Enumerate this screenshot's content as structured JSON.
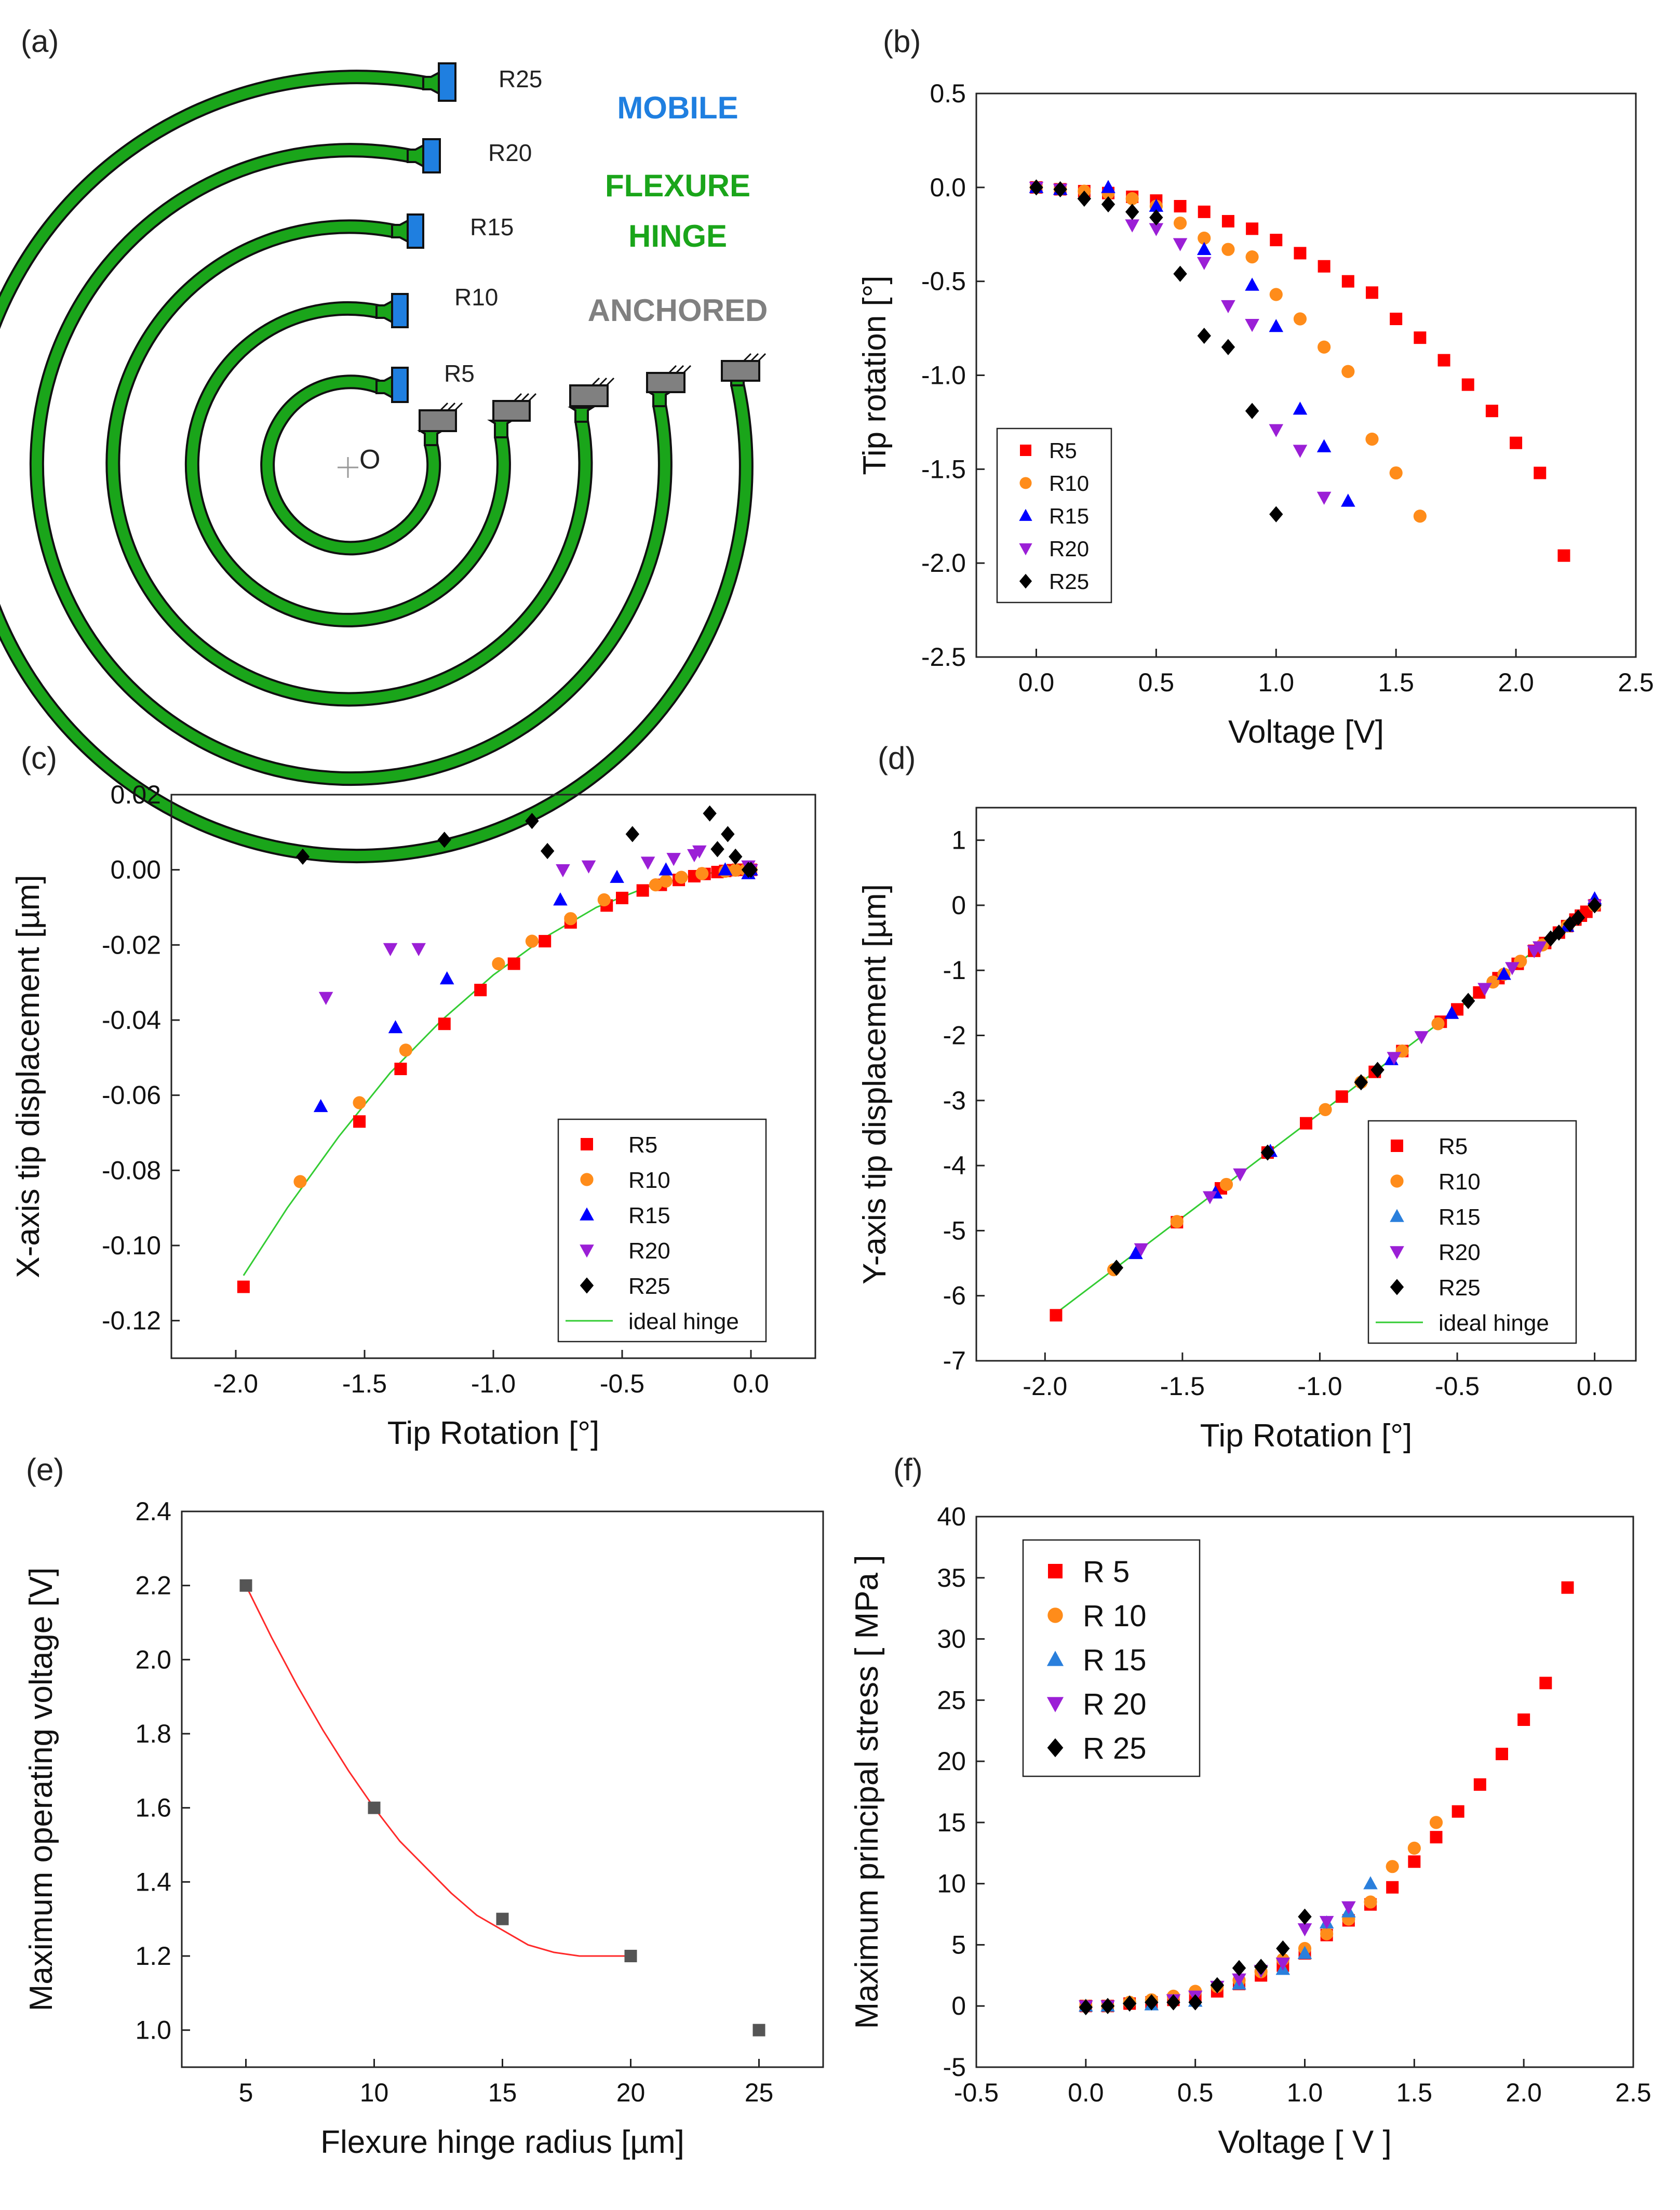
{
  "panel_labels": [
    "(a)",
    "(b)",
    "(c)",
    "(d)",
    "(e)",
    "(f)"
  ],
  "diagram_a": {
    "legend": {
      "mobile": "MOBILE",
      "flexure_line1": "FLEXURE",
      "flexure_line2": "HINGE",
      "anchored": "ANCHORED"
    },
    "hinges": [
      {
        "name": "R5",
        "radius": 5
      },
      {
        "name": "R10",
        "radius": 10
      },
      {
        "name": "R15",
        "radius": 15
      },
      {
        "name": "R20",
        "radius": 20
      },
      {
        "name": "R25",
        "radius": 25
      }
    ],
    "origin_label": "O",
    "colors": {
      "mobile": "#1f7fe0",
      "flexure": "#1aa51a",
      "anchored": "#808080"
    }
  },
  "series_styles": {
    "R5": {
      "color": "#ff0000",
      "marker": "square"
    },
    "R10": {
      "color": "#ff8c1a",
      "marker": "circle"
    },
    "R15": {
      "color": "#0000ff",
      "marker": "triangle-up"
    },
    "R15_alt": {
      "color": "#2a7fdc",
      "marker": "triangle-up"
    },
    "R20": {
      "color": "#9b1fd6",
      "marker": "triangle-down"
    },
    "R25": {
      "color": "#000000",
      "marker": "diamond"
    },
    "ideal": {
      "color": "#33cc33"
    },
    "fit": {
      "color": "#ff2a2a"
    },
    "gray": {
      "color": "#555555"
    }
  },
  "chart_data": [
    {
      "id": "b",
      "type": "scatter",
      "xlabel": "Voltage [V]",
      "ylabel": "Tip rotation [°]",
      "xlim": [
        -0.25,
        2.5
      ],
      "ylim": [
        -2.5,
        0.5
      ],
      "xticks": [
        0.0,
        0.5,
        1.0,
        1.5,
        2.0,
        2.5
      ],
      "xtick_labels": [
        "0.0",
        "0.5",
        "1.0",
        "1.5",
        "2.0",
        "2.5"
      ],
      "yticks": [
        0.5,
        0.0,
        -0.5,
        -1.0,
        -1.5,
        -2.0,
        -2.5
      ],
      "ytick_labels": [
        "0.5",
        "0.0",
        "-0.5",
        "-1.0",
        "-1.5",
        "-2.0",
        "-2.5"
      ],
      "legend_position": "bottom-left",
      "series": [
        {
          "name": "R5",
          "x": [
            0,
            0.1,
            0.2,
            0.3,
            0.4,
            0.5,
            0.6,
            0.7,
            0.8,
            0.9,
            1.0,
            1.1,
            1.2,
            1.3,
            1.4,
            1.5,
            1.6,
            1.7,
            1.8,
            1.9,
            2.0,
            2.1,
            2.2
          ],
          "y": [
            0,
            -0.01,
            -0.02,
            -0.03,
            -0.05,
            -0.07,
            -0.1,
            -0.13,
            -0.18,
            -0.22,
            -0.28,
            -0.35,
            -0.42,
            -0.5,
            -0.56,
            -0.7,
            -0.8,
            -0.92,
            -1.05,
            -1.19,
            -1.36,
            -1.52,
            -1.96
          ]
        },
        {
          "name": "R10",
          "x": [
            0,
            0.1,
            0.2,
            0.3,
            0.4,
            0.5,
            0.6,
            0.7,
            0.8,
            0.9,
            1.0,
            1.1,
            1.2,
            1.3,
            1.4,
            1.5,
            1.6
          ],
          "y": [
            0,
            -0.01,
            -0.02,
            -0.03,
            -0.06,
            -0.1,
            -0.19,
            -0.27,
            -0.33,
            -0.37,
            -0.57,
            -0.7,
            -0.85,
            -0.98,
            -1.34,
            -1.52,
            -1.75
          ]
        },
        {
          "name": "R15",
          "x": [
            0,
            0.1,
            0.3,
            0.5,
            0.7,
            0.9,
            1.0,
            1.1,
            1.2,
            1.3
          ],
          "y": [
            0,
            -0.01,
            0.0,
            -0.1,
            -0.33,
            -0.52,
            -0.74,
            -1.18,
            -1.38,
            -1.67
          ]
        },
        {
          "name": "R20",
          "x": [
            0,
            0.1,
            0.4,
            0.5,
            0.6,
            0.7,
            0.8,
            0.9,
            1.0,
            1.1,
            1.2
          ],
          "y": [
            0,
            -0.01,
            -0.2,
            -0.22,
            -0.3,
            -0.4,
            -0.63,
            -0.73,
            -1.29,
            -1.4,
            -1.65
          ]
        },
        {
          "name": "R25",
          "x": [
            0,
            0.1,
            0.2,
            0.3,
            0.4,
            0.5,
            0.6,
            0.7,
            0.8,
            0.9,
            1.0
          ],
          "y": [
            0,
            -0.01,
            -0.06,
            -0.09,
            -0.13,
            -0.16,
            -0.46,
            -0.79,
            -0.85,
            -1.19,
            -1.74
          ]
        }
      ]
    },
    {
      "id": "c",
      "type": "scatter",
      "xlabel": "Tip Rotation [°]",
      "ylabel": "X-axis tip displacement [µm]",
      "xlim": [
        -2.25,
        0.25
      ],
      "ylim": [
        -0.13,
        0.02
      ],
      "xticks": [
        -2.0,
        -1.5,
        -1.0,
        -0.5,
        0.0
      ],
      "xtick_labels": [
        "-2.0",
        "-1.5",
        "-1.0",
        "-0.5",
        "0.0"
      ],
      "yticks": [
        0.02,
        0.0,
        -0.02,
        -0.04,
        -0.06,
        -0.08,
        -0.1,
        -0.12
      ],
      "ytick_labels": [
        "0.02",
        "0.00",
        "-0.02",
        "-0.04",
        "-0.06",
        "-0.08",
        "-0.10",
        "-0.12"
      ],
      "legend_position": "bottom-right",
      "ideal_label": "ideal hinge",
      "ideal_curve": {
        "x": [
          -1.97,
          -1.8,
          -1.6,
          -1.4,
          -1.2,
          -1.0,
          -0.8,
          -0.6,
          -0.4,
          -0.2,
          0.0
        ],
        "y": [
          -0.108,
          -0.09,
          -0.071,
          -0.054,
          -0.04,
          -0.028,
          -0.018,
          -0.01,
          -0.0045,
          -0.0011,
          0.0
        ]
      },
      "series": [
        {
          "name": "R5",
          "x": [
            -1.97,
            -1.52,
            -1.36,
            -1.19,
            -1.05,
            -0.92,
            -0.8,
            -0.7,
            -0.56,
            -0.5,
            -0.42,
            -0.35,
            -0.28,
            -0.22,
            -0.18,
            -0.13,
            -0.1,
            -0.07,
            -0.05,
            -0.03,
            0.0
          ],
          "y": [
            -0.111,
            -0.067,
            -0.053,
            -0.041,
            -0.032,
            -0.025,
            -0.019,
            -0.014,
            -0.0095,
            -0.0075,
            -0.0055,
            -0.004,
            -0.0027,
            -0.0017,
            -0.0011,
            -0.0006,
            -0.0003,
            -0.0001,
            0.0,
            0.0,
            0.0
          ]
        },
        {
          "name": "R10",
          "x": [
            -1.75,
            -1.52,
            -1.34,
            -0.98,
            -0.85,
            -0.7,
            -0.57,
            -0.37,
            -0.33,
            -0.27,
            -0.19,
            -0.1,
            -0.06,
            -0.02,
            0.0
          ],
          "y": [
            -0.083,
            -0.062,
            -0.048,
            -0.025,
            -0.019,
            -0.013,
            -0.008,
            -0.004,
            -0.003,
            -0.002,
            -0.001,
            -0.0004,
            -0.0001,
            0.0,
            0.0
          ]
        },
        {
          "name": "R15",
          "x": [
            -1.67,
            -1.38,
            -1.18,
            -0.74,
            -0.52,
            -0.33,
            -0.1,
            -0.01,
            0.0
          ],
          "y": [
            -0.063,
            -0.042,
            -0.029,
            -0.008,
            -0.002,
            0.0,
            0.0,
            -0.001,
            0.0
          ]
        },
        {
          "name": "R20",
          "x": [
            -1.65,
            -1.4,
            -1.29,
            -0.73,
            -0.63,
            -0.4,
            -0.3,
            -0.22,
            -0.2,
            -0.01,
            0.0
          ],
          "y": [
            -0.034,
            -0.021,
            -0.021,
            0.0,
            0.001,
            0.002,
            0.003,
            0.004,
            0.005,
            0.001,
            0.0
          ]
        },
        {
          "name": "R25",
          "x": [
            -1.74,
            -1.19,
            -0.85,
            -0.79,
            -0.46,
            -0.16,
            -0.13,
            -0.09,
            -0.06,
            -0.01,
            0.0
          ],
          "y": [
            0.0035,
            0.008,
            0.013,
            0.005,
            0.0095,
            0.015,
            0.0055,
            0.0095,
            0.0035,
            0.0,
            0.0
          ]
        }
      ]
    },
    {
      "id": "d",
      "type": "scatter",
      "xlabel": "Tip Rotation [°]",
      "ylabel": "Y-axis tip displacement [µm]",
      "xlim": [
        -2.25,
        0.15
      ],
      "ylim": [
        -7,
        1.5
      ],
      "xticks": [
        -2.0,
        -1.5,
        -1.0,
        -0.5,
        0.0
      ],
      "xtick_labels": [
        "-2.0",
        "-1.5",
        "-1.0",
        "-0.5",
        "0.0"
      ],
      "yticks": [
        1,
        0,
        -1,
        -2,
        -3,
        -4,
        -5,
        -6,
        -7
      ],
      "ytick_labels": [
        "1",
        "0",
        "-1",
        "-2",
        "-3",
        "-4",
        "-5",
        "-6",
        "-7"
      ],
      "legend_position": "bottom-right",
      "ideal_label": "ideal hinge",
      "ideal_curve": {
        "x": [
          -1.97,
          0.0
        ],
        "y": [
          -6.3,
          0.0
        ]
      },
      "series": [
        {
          "name": "R5",
          "x": [
            -1.96,
            -1.52,
            -1.36,
            -1.19,
            -1.05,
            -0.92,
            -0.8,
            -0.7,
            -0.56,
            -0.5,
            -0.42,
            -0.35,
            -0.28,
            -0.22,
            -0.18,
            -0.13,
            -0.1,
            -0.07,
            -0.05,
            -0.03,
            0.0
          ],
          "y": [
            -6.3,
            -4.87,
            -4.35,
            -3.8,
            -3.35,
            -2.94,
            -2.56,
            -2.24,
            -1.79,
            -1.6,
            -1.34,
            -1.12,
            -0.9,
            -0.7,
            -0.58,
            -0.42,
            -0.32,
            -0.22,
            -0.16,
            -0.1,
            0.0
          ]
        },
        {
          "name": "R10",
          "x": [
            -1.75,
            -1.52,
            -1.34,
            -0.98,
            -0.85,
            -0.7,
            -0.57,
            -0.37,
            -0.33,
            -0.27,
            -0.19,
            -0.1,
            0.0
          ],
          "y": [
            -5.6,
            -4.86,
            -4.29,
            -3.14,
            -2.72,
            -2.24,
            -1.82,
            -1.18,
            -1.06,
            -0.86,
            -0.61,
            -0.32,
            0.0
          ]
        },
        {
          "name": "R15",
          "x": [
            -1.67,
            -1.38,
            -1.18,
            -0.74,
            -0.52,
            -0.33,
            -0.1,
            0.0
          ],
          "y": [
            -5.35,
            -4.42,
            -3.78,
            -2.37,
            -1.66,
            -1.06,
            -0.32,
            0.1
          ]
        },
        {
          "name": "R20",
          "x": [
            -1.65,
            -1.4,
            -1.29,
            -0.73,
            -0.63,
            -0.4,
            -0.3,
            -0.22,
            -0.2,
            0.0
          ],
          "y": [
            -5.28,
            -4.48,
            -4.13,
            -2.34,
            -2.02,
            -1.28,
            -0.96,
            -0.7,
            -0.64,
            0.0
          ]
        },
        {
          "name": "R25",
          "x": [
            -1.74,
            -1.19,
            -0.85,
            -0.79,
            -0.46,
            -0.16,
            -0.13,
            -0.09,
            -0.06,
            0.0
          ],
          "y": [
            -5.57,
            -3.8,
            -2.72,
            -2.53,
            -1.47,
            -0.51,
            -0.42,
            -0.29,
            -0.19,
            0.0
          ]
        }
      ]
    },
    {
      "id": "e",
      "type": "scatter",
      "xlabel": "Flexure hinge radius [µm]",
      "ylabel": "Maximum operating voltage [V]",
      "xlim": [
        2.5,
        27.5
      ],
      "ylim": [
        0.9,
        2.4
      ],
      "xticks": [
        5,
        10,
        15,
        20,
        25
      ],
      "xtick_labels": [
        "5",
        "10",
        "15",
        "20",
        "25"
      ],
      "yticks": [
        2.4,
        2.2,
        2.0,
        1.8,
        1.6,
        1.4,
        1.2,
        1.0
      ],
      "ytick_labels": [
        "2.4",
        "2.2",
        "2.0",
        "1.8",
        "1.6",
        "1.4",
        "1.2",
        "1.0"
      ],
      "series": [
        {
          "name": "max voltage",
          "x": [
            5,
            10,
            15,
            20,
            25
          ],
          "y": [
            2.2,
            1.6,
            1.3,
            1.2,
            1.0
          ]
        }
      ],
      "fit_curve": {
        "x": [
          5,
          6,
          7,
          8,
          9,
          10,
          11,
          12,
          13,
          14,
          15,
          16,
          17,
          18,
          19,
          20
        ],
        "y": [
          2.2,
          2.06,
          1.93,
          1.81,
          1.7,
          1.6,
          1.51,
          1.44,
          1.37,
          1.31,
          1.27,
          1.23,
          1.21,
          1.2,
          1.2,
          1.2
        ]
      }
    },
    {
      "id": "f",
      "type": "scatter",
      "xlabel": "Voltage [ V ]",
      "ylabel": "Maximum principal stress [ MPa ]",
      "xlim": [
        -0.5,
        2.5
      ],
      "ylim": [
        -5,
        40
      ],
      "xticks": [
        -0.5,
        0.0,
        0.5,
        1.0,
        1.5,
        2.0,
        2.5
      ],
      "xtick_labels": [
        "-0.5",
        "0.0",
        "0.5",
        "1.0",
        "1.5",
        "2.0",
        "2.5"
      ],
      "yticks": [
        40,
        35,
        30,
        25,
        20,
        15,
        10,
        5,
        0,
        -5
      ],
      "ytick_labels": [
        "40",
        "35",
        "30",
        "25",
        "20",
        "15",
        "10",
        "5",
        "0",
        "-5"
      ],
      "legend_position": "top-left",
      "series": [
        {
          "name": "R 5",
          "x": [
            0,
            0.1,
            0.2,
            0.3,
            0.4,
            0.5,
            0.6,
            0.7,
            0.8,
            0.9,
            1.0,
            1.1,
            1.2,
            1.3,
            1.4,
            1.5,
            1.6,
            1.7,
            1.8,
            1.9,
            2.0,
            2.1,
            2.2
          ],
          "y": [
            0,
            0,
            0.2,
            0.3,
            0.5,
            0.8,
            1.2,
            1.8,
            2.5,
            3.3,
            4.3,
            5.8,
            7.0,
            8.3,
            9.7,
            11.8,
            13.8,
            15.9,
            18.1,
            20.6,
            23.4,
            26.4,
            34.2
          ]
        },
        {
          "name": "R 10",
          "x": [
            0,
            0.1,
            0.2,
            0.3,
            0.4,
            0.5,
            0.6,
            0.7,
            0.8,
            0.9,
            1.0,
            1.1,
            1.2,
            1.3,
            1.4,
            1.5,
            1.6
          ],
          "y": [
            0,
            0,
            0.3,
            0.5,
            0.8,
            1.2,
            1.6,
            2.1,
            2.8,
            3.8,
            4.7,
            5.9,
            7.1,
            8.5,
            11.4,
            12.9,
            15.0
          ]
        },
        {
          "name": "R 15",
          "x": [
            0,
            0.1,
            0.3,
            0.5,
            0.7,
            0.9,
            1.0,
            1.1,
            1.2,
            1.3
          ],
          "y": [
            0,
            0,
            0.1,
            0.4,
            1.8,
            3.0,
            4.3,
            6.8,
            7.7,
            10.0
          ]
        },
        {
          "name": "R 20",
          "x": [
            0,
            0.1,
            0.4,
            0.5,
            0.6,
            0.7,
            0.8,
            0.9,
            1.0,
            1.1,
            1.2
          ],
          "y": [
            0,
            0,
            0.5,
            0.8,
            1.6,
            2.2,
            2.9,
            3.5,
            6.3,
            6.9,
            8.1
          ]
        },
        {
          "name": "R 25",
          "x": [
            0,
            0.1,
            0.2,
            0.3,
            0.4,
            0.5,
            0.6,
            0.7,
            0.8,
            0.9,
            1.0
          ],
          "y": [
            -0.1,
            0,
            0.2,
            0.3,
            0.3,
            0.3,
            1.7,
            3.1,
            3.2,
            4.7,
            7.3
          ]
        }
      ]
    }
  ]
}
